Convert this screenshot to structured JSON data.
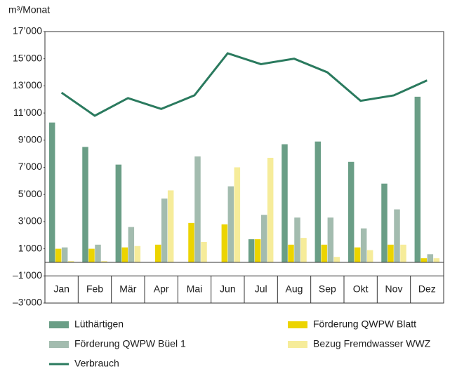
{
  "chart_data": {
    "type": "bar",
    "y_label": "m³/Monat",
    "categories": [
      "Jan",
      "Feb",
      "Mär",
      "Apr",
      "Mai",
      "Jun",
      "Jul",
      "Aug",
      "Sep",
      "Okt",
      "Nov",
      "Dez"
    ],
    "series": [
      {
        "name": "Lüthärtigen",
        "color": "#6a9e86",
        "values": [
          10300,
          8500,
          7200,
          0,
          0,
          0,
          1700,
          8700,
          8900,
          7400,
          5800,
          12200
        ]
      },
      {
        "name": "Förderung QWPW Blatt",
        "color": "#ecd400",
        "values": [
          1000,
          1000,
          1100,
          1300,
          2900,
          2800,
          1700,
          1300,
          1300,
          1100,
          1300,
          300
        ]
      },
      {
        "name": "Förderung QWPW Büel 1",
        "color": "#a3bcaf",
        "values": [
          1100,
          1300,
          2600,
          4700,
          7800,
          5600,
          3500,
          3300,
          3300,
          2500,
          3900,
          600
        ]
      },
      {
        "name": "Bezug Fremdwasser WWZ",
        "color": "#f6ec9a",
        "values": [
          100,
          100,
          1200,
          5300,
          1500,
          7000,
          7700,
          1800,
          400,
          900,
          1300,
          300
        ]
      },
      {
        "name": "Verbrauch",
        "type": "line",
        "color": "#2a7a5e",
        "values": [
          12500,
          10800,
          12100,
          11300,
          12300,
          15400,
          14600,
          15000,
          14000,
          11900,
          12300,
          13400
        ]
      }
    ],
    "ylim": [
      -3000,
      17000
    ],
    "yticks": [
      {
        "value": 17000,
        "label": "17’000"
      },
      {
        "value": 15000,
        "label": "15’000"
      },
      {
        "value": 13000,
        "label": "13’000"
      },
      {
        "value": 11000,
        "label": "11’000"
      },
      {
        "value": 9000,
        "label": "9’000"
      },
      {
        "value": 7000,
        "label": "7’000"
      },
      {
        "value": 5000,
        "label": "5’000"
      },
      {
        "value": 3000,
        "label": "3’000"
      },
      {
        "value": 1000,
        "label": "1’000"
      },
      {
        "value": -1000,
        "label": "–1’000"
      },
      {
        "value": -3000,
        "label": "–3’000"
      }
    ]
  }
}
